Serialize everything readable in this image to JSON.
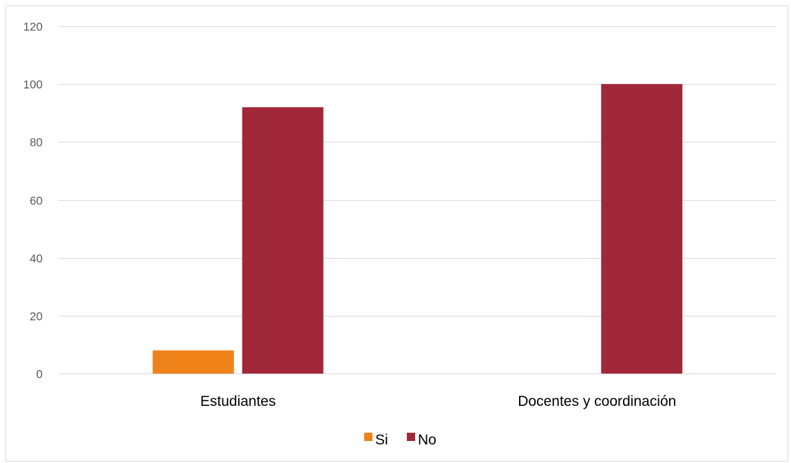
{
  "chart_data": {
    "type": "bar",
    "categories": [
      "Estudiantes",
      "Docentes y coordinación"
    ],
    "series": [
      {
        "name": "Si",
        "values": [
          8,
          0
        ],
        "color": "#f0821a"
      },
      {
        "name": "No",
        "values": [
          92,
          100
        ],
        "color": "#a12838"
      }
    ],
    "title": "",
    "xlabel": "",
    "ylabel": "",
    "ylim": [
      0,
      120
    ],
    "yticks": [
      0,
      20,
      40,
      60,
      80,
      100,
      120
    ],
    "grid": true,
    "legend": "bottom"
  }
}
